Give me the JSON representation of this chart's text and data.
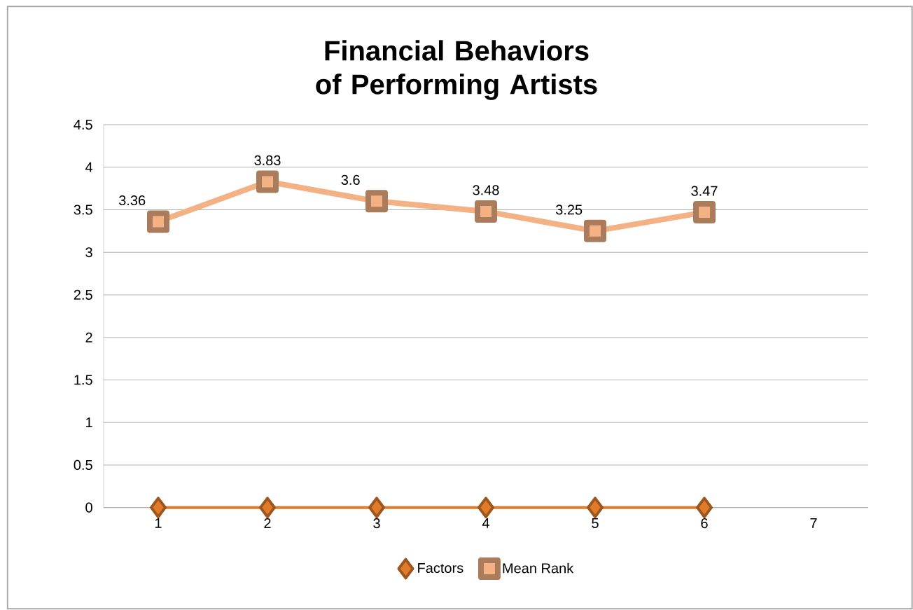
{
  "chart_data": {
    "type": "line",
    "title": "Financial Behaviors of Performing Artists",
    "categories": [
      "1",
      "2",
      "3",
      "4",
      "5",
      "6",
      "7"
    ],
    "series": [
      {
        "name": "Factors",
        "color": "#e07b29",
        "marker": "diamond",
        "values": [
          0,
          0,
          0,
          0,
          0,
          0,
          null
        ]
      },
      {
        "name": "Mean Rank",
        "color": "#f4b183",
        "marker": "square",
        "values": [
          3.36,
          3.83,
          3.6,
          3.48,
          3.25,
          3.47,
          null
        ],
        "value_labels": [
          "3.36",
          "3.83",
          "3.6",
          "3.48",
          "3.25",
          "3.47",
          null
        ]
      }
    ],
    "ylim": [
      0,
      4.5
    ],
    "yticks": [
      0,
      0.5,
      1,
      1.5,
      2,
      2.5,
      3,
      3.5,
      4,
      4.5
    ],
    "grid": "y",
    "legend": "bottom"
  }
}
